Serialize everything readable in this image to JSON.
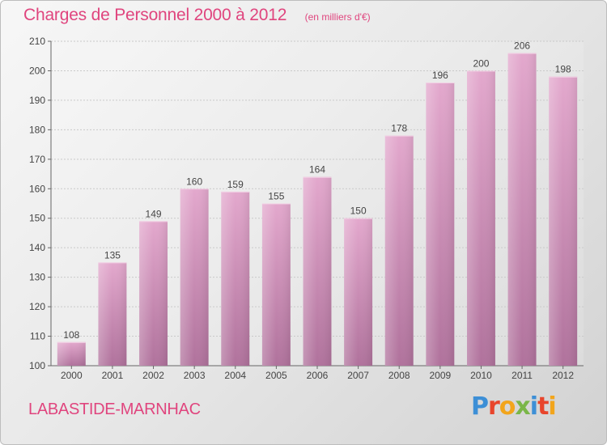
{
  "header": {
    "title": "Charges de Personnel 2000 à 2012",
    "subtitle": "(en milliers d'€)"
  },
  "footer": {
    "commune": "LABASTIDE-MARNHAC",
    "brand": "Proxiti"
  },
  "colors": {
    "accent": "#e0457e",
    "bar_top": "#e3a8cd",
    "bar_bottom": "#b0729c",
    "brand_letters": [
      "#3d8fd6",
      "#e8452c",
      "#f2a51c",
      "#7ab648",
      "#3d8fd6",
      "#e8452c",
      "#f2a51c"
    ]
  },
  "chart_data": {
    "type": "bar",
    "categories": [
      "2000",
      "2001",
      "2002",
      "2003",
      "2004",
      "2005",
      "2006",
      "2007",
      "2008",
      "2009",
      "2010",
      "2011",
      "2012"
    ],
    "values": [
      108,
      135,
      149,
      160,
      159,
      155,
      164,
      150,
      178,
      196,
      200,
      206,
      198
    ],
    "title": "Charges de Personnel 2000 à 2012",
    "xlabel": "",
    "ylabel": "",
    "ylim": [
      100,
      210
    ],
    "yticks": [
      100,
      110,
      120,
      130,
      140,
      150,
      160,
      170,
      180,
      190,
      200,
      210
    ],
    "grid": true,
    "data_labels": true
  }
}
